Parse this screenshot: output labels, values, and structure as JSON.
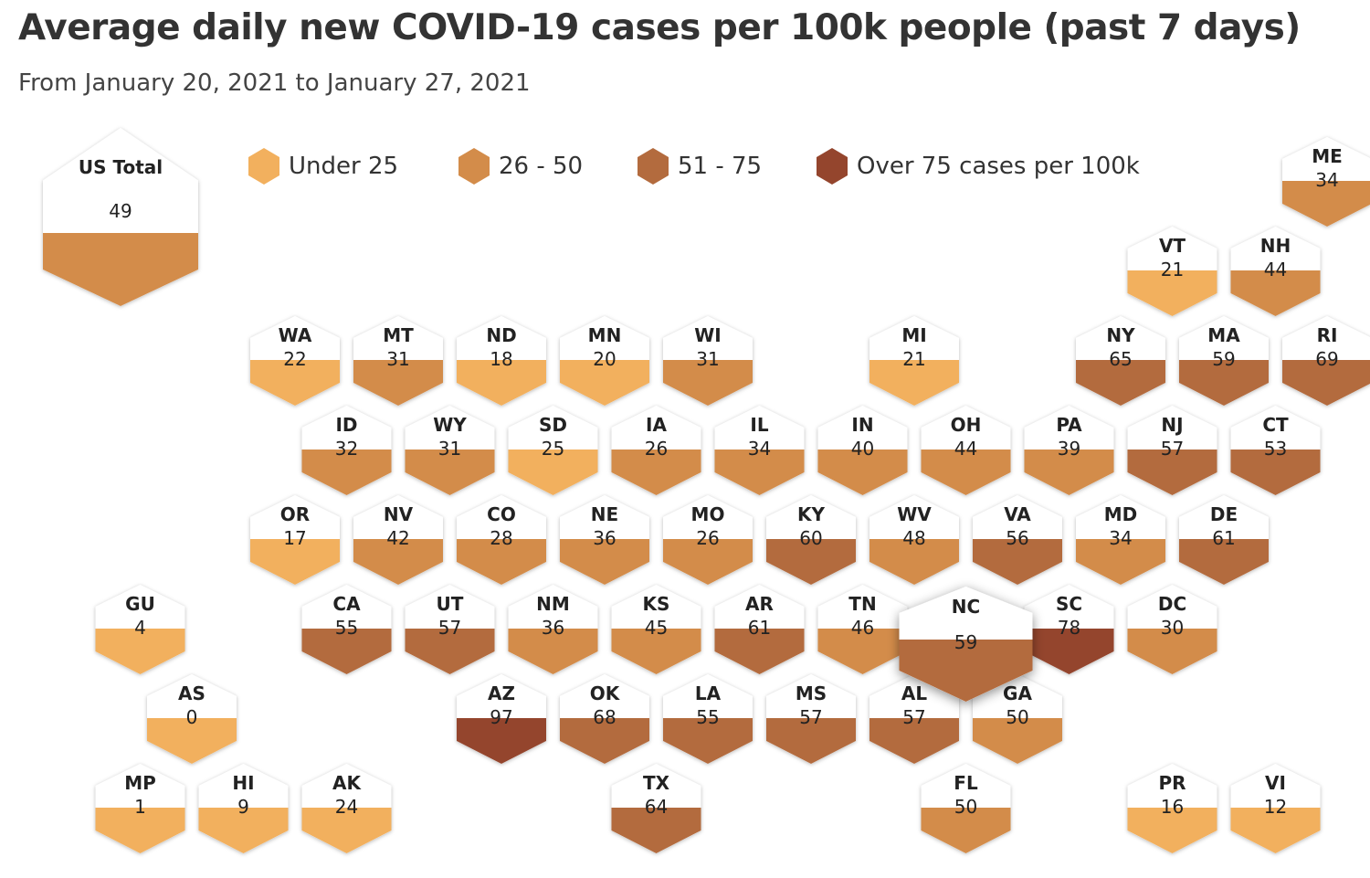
{
  "title": "Average daily new COVID-19 cases per 100k people (past 7 days)",
  "subtitle": "From January 20, 2021 to January 27, 2021",
  "legend": [
    {
      "label": "Under 25",
      "color": "#f2b05e"
    },
    {
      "label": "26 - 50",
      "color": "#d38c4a"
    },
    {
      "label": "51 - 75",
      "color": "#b36b3e"
    },
    {
      "label": "Over 75 cases per 100k",
      "color": "#94452d"
    }
  ],
  "highlighted": "NC",
  "us_total": {
    "label": "US Total",
    "value": 49
  },
  "tiles": [
    {
      "abbr": "ME",
      "value": 34,
      "row": 0,
      "col": 12
    },
    {
      "abbr": "VT",
      "value": 21,
      "row": 1,
      "col": 10.5
    },
    {
      "abbr": "NH",
      "value": 44,
      "row": 1,
      "col": 11.5
    },
    {
      "abbr": "WA",
      "value": 22,
      "row": 2,
      "col": 2
    },
    {
      "abbr": "MT",
      "value": 31,
      "row": 2,
      "col": 3
    },
    {
      "abbr": "ND",
      "value": 18,
      "row": 2,
      "col": 4
    },
    {
      "abbr": "MN",
      "value": 20,
      "row": 2,
      "col": 5
    },
    {
      "abbr": "WI",
      "value": 31,
      "row": 2,
      "col": 6
    },
    {
      "abbr": "MI",
      "value": 21,
      "row": 2,
      "col": 8
    },
    {
      "abbr": "NY",
      "value": 65,
      "row": 2,
      "col": 10
    },
    {
      "abbr": "MA",
      "value": 59,
      "row": 2,
      "col": 11
    },
    {
      "abbr": "RI",
      "value": 69,
      "row": 2,
      "col": 12
    },
    {
      "abbr": "ID",
      "value": 32,
      "row": 3,
      "col": 2.5
    },
    {
      "abbr": "WY",
      "value": 31,
      "row": 3,
      "col": 3.5
    },
    {
      "abbr": "SD",
      "value": 25,
      "row": 3,
      "col": 4.5
    },
    {
      "abbr": "IA",
      "value": 26,
      "row": 3,
      "col": 5.5
    },
    {
      "abbr": "IL",
      "value": 34,
      "row": 3,
      "col": 6.5
    },
    {
      "abbr": "IN",
      "value": 40,
      "row": 3,
      "col": 7.5
    },
    {
      "abbr": "OH",
      "value": 44,
      "row": 3,
      "col": 8.5
    },
    {
      "abbr": "PA",
      "value": 39,
      "row": 3,
      "col": 9.5
    },
    {
      "abbr": "NJ",
      "value": 57,
      "row": 3,
      "col": 10.5
    },
    {
      "abbr": "CT",
      "value": 53,
      "row": 3,
      "col": 11.5
    },
    {
      "abbr": "OR",
      "value": 17,
      "row": 4,
      "col": 2
    },
    {
      "abbr": "NV",
      "value": 42,
      "row": 4,
      "col": 3
    },
    {
      "abbr": "CO",
      "value": 28,
      "row": 4,
      "col": 4
    },
    {
      "abbr": "NE",
      "value": 36,
      "row": 4,
      "col": 5
    },
    {
      "abbr": "MO",
      "value": 26,
      "row": 4,
      "col": 6
    },
    {
      "abbr": "KY",
      "value": 60,
      "row": 4,
      "col": 7
    },
    {
      "abbr": "WV",
      "value": 48,
      "row": 4,
      "col": 8
    },
    {
      "abbr": "VA",
      "value": 56,
      "row": 4,
      "col": 9
    },
    {
      "abbr": "MD",
      "value": 34,
      "row": 4,
      "col": 10
    },
    {
      "abbr": "DE",
      "value": 61,
      "row": 4,
      "col": 11
    },
    {
      "abbr": "GU",
      "value": 4,
      "row": 5,
      "col": 0.5
    },
    {
      "abbr": "CA",
      "value": 55,
      "row": 5,
      "col": 2.5
    },
    {
      "abbr": "UT",
      "value": 57,
      "row": 5,
      "col": 3.5
    },
    {
      "abbr": "NM",
      "value": 36,
      "row": 5,
      "col": 4.5
    },
    {
      "abbr": "KS",
      "value": 45,
      "row": 5,
      "col": 5.5
    },
    {
      "abbr": "AR",
      "value": 61,
      "row": 5,
      "col": 6.5
    },
    {
      "abbr": "TN",
      "value": 46,
      "row": 5,
      "col": 7.5
    },
    {
      "abbr": "SC",
      "value": 78,
      "row": 5,
      "col": 9.5
    },
    {
      "abbr": "DC",
      "value": 30,
      "row": 5,
      "col": 10.5
    },
    {
      "abbr": "AS",
      "value": 0,
      "row": 6,
      "col": 1
    },
    {
      "abbr": "AZ",
      "value": 97,
      "row": 6,
      "col": 4
    },
    {
      "abbr": "OK",
      "value": 68,
      "row": 6,
      "col": 5
    },
    {
      "abbr": "LA",
      "value": 55,
      "row": 6,
      "col": 6
    },
    {
      "abbr": "MS",
      "value": 57,
      "row": 6,
      "col": 7
    },
    {
      "abbr": "AL",
      "value": 57,
      "row": 6,
      "col": 8
    },
    {
      "abbr": "GA",
      "value": 50,
      "row": 6,
      "col": 9
    },
    {
      "abbr": "MP",
      "value": 1,
      "row": 7,
      "col": 0.5
    },
    {
      "abbr": "HI",
      "value": 9,
      "row": 7,
      "col": 1.5
    },
    {
      "abbr": "AK",
      "value": 24,
      "row": 7,
      "col": 2.5
    },
    {
      "abbr": "TX",
      "value": 64,
      "row": 7,
      "col": 5.5
    },
    {
      "abbr": "FL",
      "value": 50,
      "row": 7,
      "col": 8.5
    },
    {
      "abbr": "PR",
      "value": 16,
      "row": 7,
      "col": 10.5
    },
    {
      "abbr": "VI",
      "value": 12,
      "row": 7,
      "col": 11.5
    },
    {
      "abbr": "NC",
      "value": 59,
      "row": 5,
      "col": 8.5
    }
  ]
}
